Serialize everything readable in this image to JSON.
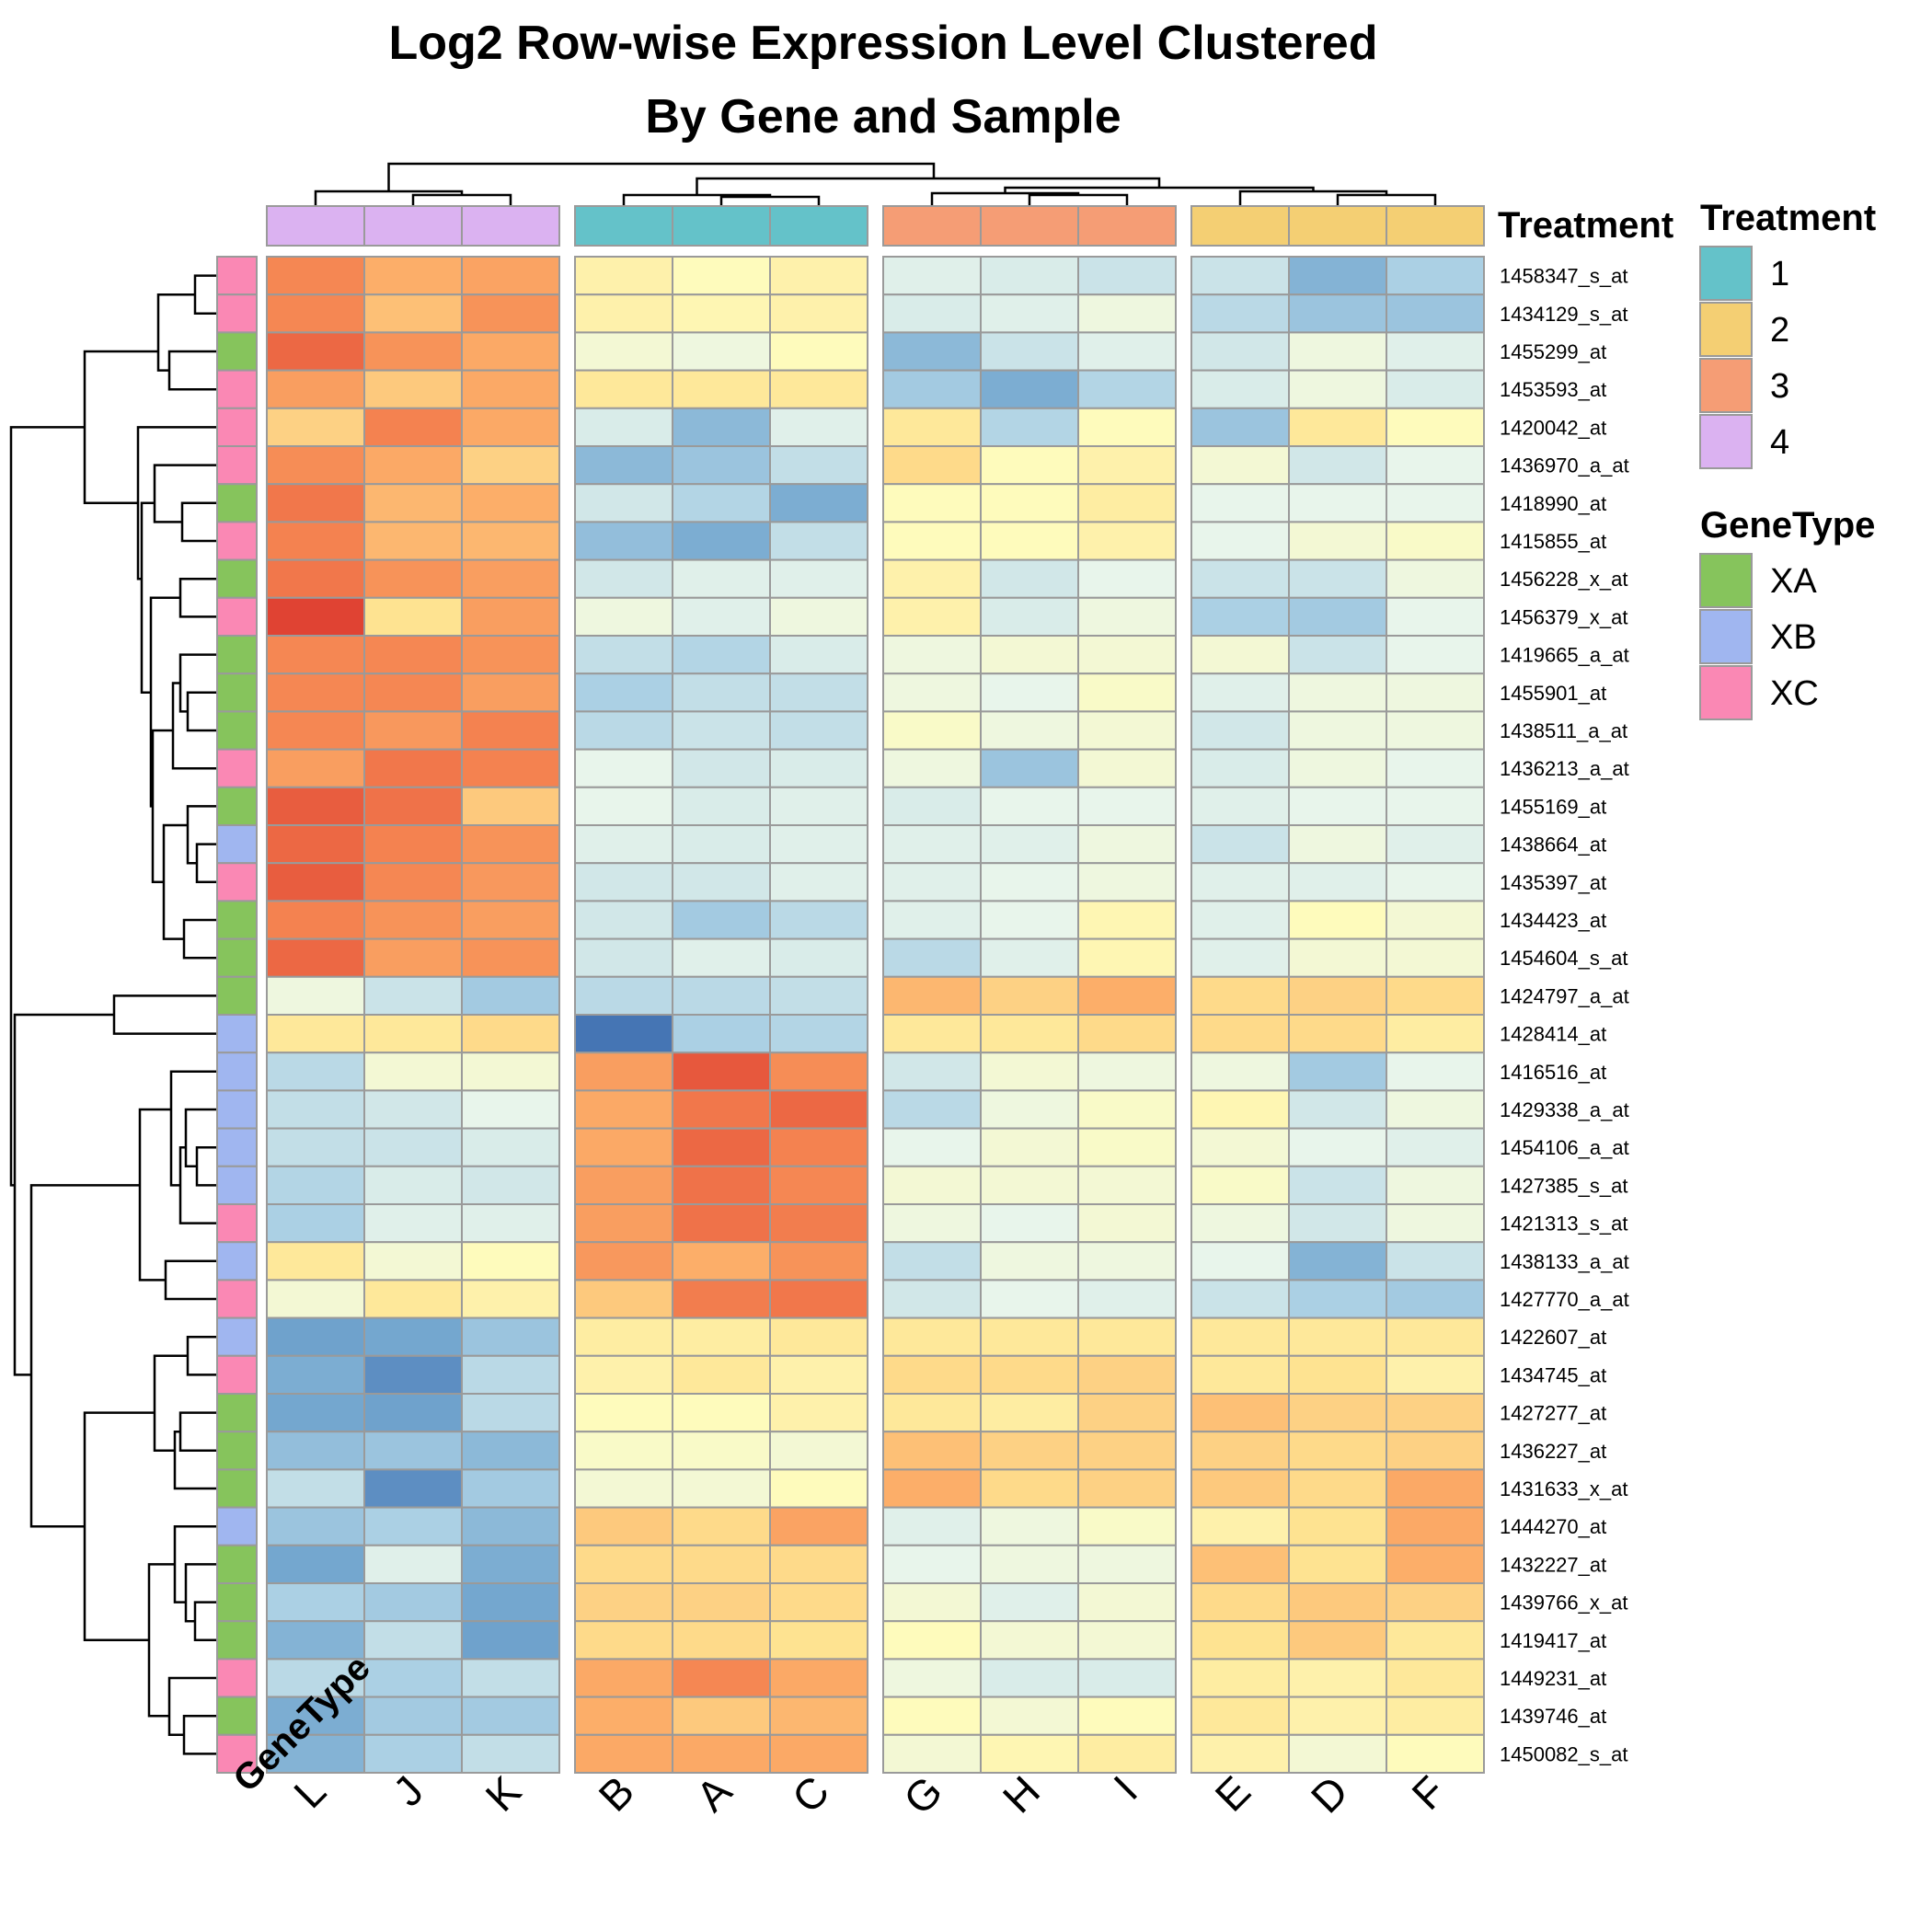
{
  "chart_data": {
    "type": "heatmap",
    "title": [
      "Log2 Row-wise Expression Level Clustered",
      "By Gene and Sample"
    ],
    "columns": [
      "L",
      "J",
      "K",
      "B",
      "A",
      "C",
      "G",
      "H",
      "I",
      "E",
      "D",
      "F"
    ],
    "column_groups": [
      3,
      3,
      3,
      3
    ],
    "column_annotation": {
      "name": "Treatment",
      "values": [
        "4",
        "4",
        "4",
        "1",
        "1",
        "1",
        "3",
        "3",
        "3",
        "2",
        "2",
        "2"
      ]
    },
    "row_annotation": {
      "name": "GeneType",
      "values": [
        "XC",
        "XC",
        "XA",
        "XC",
        "XC",
        "XC",
        "XA",
        "XC",
        "XA",
        "XC",
        "XA",
        "XA",
        "XA",
        "XC",
        "XA",
        "XB",
        "XC",
        "XA",
        "XA",
        "XA",
        "XB",
        "XB",
        "XB",
        "XB",
        "XB",
        "XC",
        "XB",
        "XC",
        "XB",
        "XC",
        "XA",
        "XA",
        "XA",
        "XB",
        "XA",
        "XA",
        "XA",
        "XC",
        "XA",
        "XC"
      ]
    },
    "rows": [
      "1458347_s_at",
      "1434129_s_at",
      "1455299_at",
      "1453593_at",
      "1420042_at",
      "1436970_a_at",
      "1418990_at",
      "1415855_at",
      "1456228_x_at",
      "1456379_x_at",
      "1419665_a_at",
      "1455901_at",
      "1438511_a_at",
      "1436213_a_at",
      "1455169_at",
      "1438664_at",
      "1435397_at",
      "1434423_at",
      "1454604_s_at",
      "1424797_a_at",
      "1428414_at",
      "1416516_at",
      "1429338_a_at",
      "1454106_a_at",
      "1427385_s_at",
      "1421313_s_at",
      "1438133_a_at",
      "1427770_a_at",
      "1422607_at",
      "1434745_at",
      "1427277_at",
      "1436227_at",
      "1431633_x_at",
      "1444270_at",
      "1432227_at",
      "1439766_x_at",
      "1419417_at",
      "1449231_at",
      "1439746_at",
      "1450082_s_at"
    ],
    "values": [
      [
        2.2,
        1.5,
        1.7,
        0.6,
        0.4,
        0.6,
        -0.1,
        -0.2,
        -0.4,
        -0.4,
        -1.3,
        -0.8
      ],
      [
        2.2,
        1.3,
        2.0,
        0.6,
        0.5,
        0.6,
        -0.2,
        -0.1,
        0.1,
        -0.6,
        -1.0,
        -1.0
      ],
      [
        2.8,
        2.0,
        1.6,
        0.2,
        0.1,
        0.4,
        -1.2,
        -0.4,
        -0.1,
        -0.3,
        0.1,
        -0.1
      ],
      [
        1.8,
        1.2,
        1.6,
        0.8,
        0.8,
        0.8,
        -0.9,
        -1.4,
        -0.7,
        -0.2,
        0.1,
        -0.2
      ],
      [
        1.1,
        2.3,
        1.6,
        -0.2,
        -1.2,
        -0.1,
        0.8,
        -0.7,
        0.4,
        -1.0,
        0.8,
        0.4
      ],
      [
        2.1,
        1.6,
        1.1,
        -1.2,
        -1.0,
        -0.5,
        1.0,
        0.4,
        0.6,
        0.2,
        -0.3,
        0.0
      ],
      [
        2.5,
        1.4,
        1.5,
        -0.3,
        -0.7,
        -1.4,
        0.4,
        0.4,
        0.7,
        0.0,
        0.0,
        0.0
      ],
      [
        2.3,
        1.4,
        1.4,
        -1.1,
        -1.4,
        -0.5,
        0.4,
        0.4,
        0.6,
        0.0,
        0.2,
        0.3
      ],
      [
        2.5,
        2.0,
        1.8,
        -0.3,
        -0.1,
        -0.1,
        0.6,
        -0.3,
        0.0,
        -0.4,
        -0.4,
        0.1
      ],
      [
        3.5,
        0.9,
        1.8,
        0.1,
        -0.1,
        0.1,
        0.6,
        -0.2,
        0.1,
        -0.8,
        -0.9,
        0.0
      ],
      [
        2.2,
        2.2,
        2.0,
        -0.5,
        -0.7,
        -0.2,
        0.1,
        0.2,
        0.2,
        0.2,
        -0.4,
        0.0
      ],
      [
        2.2,
        2.2,
        1.8,
        -0.8,
        -0.5,
        -0.5,
        0.1,
        0.0,
        0.3,
        -0.1,
        0.1,
        0.1
      ],
      [
        2.2,
        1.9,
        2.3,
        -0.6,
        -0.4,
        -0.5,
        0.3,
        0.1,
        0.2,
        -0.3,
        0.1,
        0.1
      ],
      [
        1.8,
        2.5,
        2.3,
        0.0,
        -0.3,
        -0.2,
        0.1,
        -1.0,
        0.2,
        -0.2,
        0.1,
        0.0
      ],
      [
        3.0,
        2.6,
        1.2,
        0.0,
        -0.2,
        -0.1,
        -0.2,
        0.0,
        0.0,
        -0.1,
        0.0,
        0.0
      ],
      [
        2.8,
        2.3,
        2.0,
        -0.1,
        -0.2,
        -0.1,
        -0.1,
        -0.1,
        0.1,
        -0.4,
        0.1,
        -0.1
      ],
      [
        3.0,
        2.2,
        1.9,
        -0.3,
        -0.3,
        -0.1,
        -0.1,
        0.0,
        0.1,
        -0.1,
        -0.1,
        0.0
      ],
      [
        2.3,
        2.0,
        1.8,
        -0.3,
        -0.9,
        -0.6,
        -0.1,
        0.0,
        0.5,
        -0.1,
        0.4,
        0.2
      ],
      [
        2.8,
        1.8,
        2.0,
        -0.3,
        -0.1,
        -0.2,
        -0.6,
        -0.1,
        0.5,
        -0.1,
        0.2,
        0.2
      ],
      [
        0.1,
        -0.4,
        -0.9,
        -0.6,
        -0.6,
        -0.5,
        1.4,
        1.1,
        1.5,
        1.0,
        1.1,
        1.0
      ],
      [
        0.8,
        0.8,
        1.0,
        -2.5,
        -0.8,
        -0.7,
        0.8,
        0.8,
        1.0,
        1.0,
        1.0,
        0.7
      ],
      [
        -0.6,
        0.2,
        0.2,
        1.8,
        3.1,
        2.1,
        -0.3,
        0.2,
        0.1,
        0.1,
        -0.9,
        0.0
      ],
      [
        -0.5,
        -0.3,
        0.0,
        1.6,
        2.5,
        2.8,
        -0.6,
        0.1,
        0.3,
        0.5,
        -0.3,
        0.1
      ],
      [
        -0.5,
        -0.4,
        -0.2,
        1.6,
        2.8,
        2.3,
        0.0,
        0.2,
        0.3,
        0.2,
        0.0,
        -0.1
      ],
      [
        -0.7,
        -0.2,
        -0.3,
        1.8,
        2.6,
        2.2,
        0.2,
        0.2,
        0.2,
        0.3,
        -0.4,
        0.1
      ],
      [
        -0.8,
        -0.1,
        -0.1,
        1.8,
        2.6,
        2.4,
        0.1,
        0.0,
        0.2,
        0.1,
        -0.3,
        0.1
      ],
      [
        0.8,
        0.2,
        0.4,
        1.9,
        1.5,
        2.0,
        -0.5,
        0.1,
        0.1,
        0.0,
        -1.3,
        -0.4
      ],
      [
        0.2,
        0.8,
        0.6,
        1.2,
        2.4,
        2.5,
        -0.3,
        0.0,
        -0.1,
        -0.4,
        -0.8,
        -0.9
      ],
      [
        -1.6,
        -1.5,
        -1.0,
        0.7,
        0.7,
        0.8,
        0.8,
        0.8,
        0.8,
        0.8,
        0.8,
        0.8
      ],
      [
        -1.4,
        -2.0,
        -0.6,
        0.6,
        0.8,
        0.6,
        1.0,
        1.0,
        1.1,
        0.8,
        0.9,
        0.6
      ],
      [
        -1.5,
        -1.6,
        -0.6,
        0.4,
        0.4,
        0.6,
        0.8,
        0.7,
        1.1,
        1.3,
        1.1,
        1.1
      ],
      [
        -1.1,
        -1.0,
        -1.2,
        0.3,
        0.3,
        0.2,
        1.3,
        1.1,
        1.1,
        1.1,
        1.0,
        1.1
      ],
      [
        -0.5,
        -2.0,
        -0.9,
        0.2,
        0.2,
        0.4,
        1.5,
        1.0,
        1.1,
        1.2,
        1.0,
        1.6
      ],
      [
        -1.0,
        -0.8,
        -1.2,
        1.2,
        1.0,
        1.7,
        -0.1,
        0.1,
        0.3,
        0.6,
        0.9,
        1.6
      ],
      [
        -1.5,
        -0.1,
        -1.4,
        1.0,
        1.0,
        1.0,
        0.0,
        0.1,
        0.1,
        1.3,
        0.9,
        1.5
      ],
      [
        -0.8,
        -0.9,
        -1.5,
        1.1,
        1.1,
        1.0,
        0.2,
        -0.1,
        0.2,
        1.0,
        1.2,
        1.1
      ],
      [
        -1.3,
        -0.5,
        -1.6,
        1.0,
        1.0,
        0.9,
        0.4,
        0.2,
        0.2,
        0.9,
        1.2,
        0.8
      ],
      [
        -0.6,
        -0.8,
        -0.5,
        1.6,
        2.2,
        1.6,
        0.1,
        -0.2,
        -0.2,
        0.7,
        0.6,
        0.8
      ],
      [
        -1.4,
        -0.9,
        -0.9,
        1.5,
        1.2,
        1.4,
        0.4,
        0.2,
        0.4,
        0.8,
        0.6,
        0.7
      ],
      [
        -1.3,
        -0.8,
        -0.5,
        1.6,
        1.6,
        1.6,
        0.2,
        0.5,
        0.7,
        0.6,
        0.2,
        0.4
      ]
    ]
  },
  "legends": {
    "treatment": {
      "title": "Treatment",
      "items": [
        {
          "label": "1",
          "color": "#64c2c9"
        },
        {
          "label": "2",
          "color": "#f4cf73"
        },
        {
          "label": "3",
          "color": "#f59d75"
        },
        {
          "label": "4",
          "color": "#dbb2f1"
        }
      ]
    },
    "genetype": {
      "title": "GeneType",
      "items": [
        {
          "label": "XA",
          "color": "#86c45c"
        },
        {
          "label": "XB",
          "color": "#a0b6f0"
        },
        {
          "label": "XC",
          "color": "#fa88b4"
        }
      ]
    }
  },
  "annotation_labels": {
    "column": "Treatment",
    "row": "GeneType"
  }
}
